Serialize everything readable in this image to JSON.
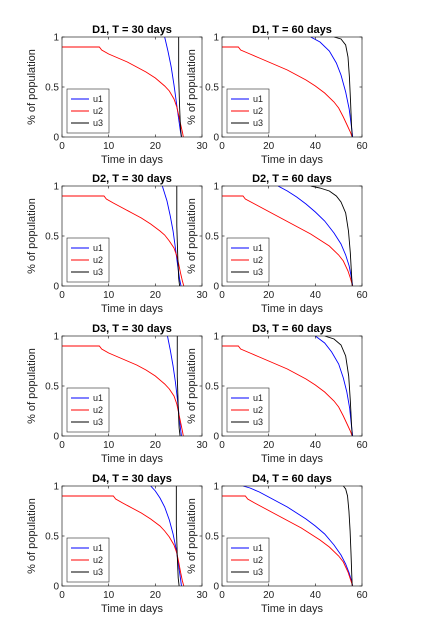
{
  "chart_data": [
    {
      "type": "line",
      "title": "D1, T = 30 days",
      "xlabel": "Time in days",
      "ylabel": "% of population",
      "xlim": [
        0,
        30
      ],
      "ylim": [
        0,
        1
      ],
      "xticks": [
        0,
        10,
        20,
        30
      ],
      "yticks": [
        0,
        0.5,
        1
      ],
      "legend": "bottom-left",
      "series": [
        {
          "name": "u1",
          "color": "#0000ff",
          "x": [
            22,
            22.7,
            23.4,
            24,
            24.5,
            25,
            25.4,
            25.6
          ],
          "y": [
            1,
            0.86,
            0.7,
            0.52,
            0.35,
            0.18,
            0.05,
            0
          ]
        },
        {
          "name": "u2",
          "color": "#ff0000",
          "x": [
            0,
            8,
            8.5,
            10,
            12,
            14,
            16,
            18,
            20,
            22,
            23,
            24,
            24.6,
            25,
            25.4,
            25.8,
            26
          ],
          "y": [
            0.9,
            0.9,
            0.87,
            0.83,
            0.79,
            0.75,
            0.7,
            0.65,
            0.59,
            0.51,
            0.46,
            0.38,
            0.3,
            0.22,
            0.13,
            0.05,
            0
          ]
        },
        {
          "name": "u3",
          "color": "#000000",
          "x": [
            25,
            25,
            25.2,
            25.4,
            25.6
          ],
          "y": [
            1,
            0.6,
            0.3,
            0.08,
            0
          ]
        }
      ]
    },
    {
      "type": "line",
      "title": "D1, T = 60 days",
      "xlabel": "Time in days",
      "ylabel": "% of population",
      "xlim": [
        0,
        60
      ],
      "ylim": [
        0,
        1
      ],
      "xticks": [
        0,
        20,
        40,
        60
      ],
      "yticks": [
        0,
        0.5,
        1
      ],
      "legend": "bottom-left",
      "series": [
        {
          "name": "u1",
          "color": "#0000ff",
          "x": [
            38,
            42,
            46,
            49,
            51,
            53,
            54.5,
            55.5,
            56
          ],
          "y": [
            1,
            0.95,
            0.86,
            0.74,
            0.62,
            0.45,
            0.28,
            0.1,
            0
          ]
        },
        {
          "name": "u2",
          "color": "#ff0000",
          "x": [
            0,
            7,
            8,
            12,
            16,
            20,
            24,
            28,
            32,
            36,
            40,
            44,
            48,
            50,
            52,
            54,
            55,
            55.8
          ],
          "y": [
            0.9,
            0.9,
            0.87,
            0.83,
            0.79,
            0.75,
            0.71,
            0.67,
            0.62,
            0.57,
            0.51,
            0.44,
            0.35,
            0.29,
            0.2,
            0.1,
            0.05,
            0
          ]
        },
        {
          "name": "u3",
          "color": "#000000",
          "x": [
            48,
            51,
            53,
            54,
            54.6,
            55.1,
            55.5,
            55.8
          ],
          "y": [
            1,
            0.98,
            0.92,
            0.8,
            0.6,
            0.35,
            0.12,
            0
          ]
        }
      ]
    },
    {
      "type": "line",
      "title": "D2, T = 30 days",
      "xlabel": "Time in days",
      "ylabel": "% of population",
      "xlim": [
        0,
        30
      ],
      "ylim": [
        0,
        1
      ],
      "xticks": [
        0,
        10,
        20,
        30
      ],
      "yticks": [
        0,
        0.5,
        1
      ],
      "legend": "bottom-left",
      "series": [
        {
          "name": "u1",
          "color": "#0000ff",
          "x": [
            21.5,
            22.5,
            23.2,
            23.8,
            24.3,
            24.8,
            25.2,
            25.5
          ],
          "y": [
            1,
            0.85,
            0.7,
            0.55,
            0.38,
            0.2,
            0.07,
            0
          ]
        },
        {
          "name": "u2",
          "color": "#ff0000",
          "x": [
            0,
            9,
            9.5,
            11,
            13,
            15,
            17,
            19,
            21,
            22,
            23,
            24,
            24.6,
            25,
            25.4,
            25.8,
            26.1
          ],
          "y": [
            0.9,
            0.9,
            0.87,
            0.83,
            0.78,
            0.73,
            0.68,
            0.62,
            0.55,
            0.51,
            0.45,
            0.38,
            0.3,
            0.22,
            0.13,
            0.05,
            0
          ]
        },
        {
          "name": "u3",
          "color": "#000000",
          "x": [
            24.6,
            24.6,
            24.8,
            25,
            25.2
          ],
          "y": [
            1,
            0.6,
            0.3,
            0.08,
            0
          ]
        }
      ]
    },
    {
      "type": "line",
      "title": "D2, T = 60 days",
      "xlabel": "Time in days",
      "ylabel": "% of population",
      "xlim": [
        0,
        60
      ],
      "ylim": [
        0,
        1
      ],
      "xticks": [
        0,
        20,
        40,
        60
      ],
      "yticks": [
        0,
        0.5,
        1
      ],
      "legend": "bottom-left",
      "series": [
        {
          "name": "u1",
          "color": "#0000ff",
          "x": [
            24,
            28,
            32,
            36,
            40,
            44,
            48,
            51,
            53,
            54.5,
            55.5,
            56
          ],
          "y": [
            1,
            0.95,
            0.89,
            0.82,
            0.74,
            0.65,
            0.53,
            0.42,
            0.31,
            0.2,
            0.08,
            0
          ]
        },
        {
          "name": "u2",
          "color": "#ff0000",
          "x": [
            0,
            9,
            10,
            14,
            18,
            22,
            26,
            30,
            34,
            38,
            42,
            46,
            50,
            52,
            54,
            55,
            56
          ],
          "y": [
            0.9,
            0.9,
            0.87,
            0.82,
            0.77,
            0.72,
            0.67,
            0.62,
            0.57,
            0.52,
            0.46,
            0.4,
            0.31,
            0.25,
            0.15,
            0.08,
            0
          ]
        },
        {
          "name": "u3",
          "color": "#000000",
          "x": [
            38,
            42,
            46,
            49,
            51,
            53,
            54.2,
            55,
            55.5,
            55.8
          ],
          "y": [
            1,
            0.98,
            0.95,
            0.9,
            0.84,
            0.73,
            0.55,
            0.33,
            0.12,
            0
          ]
        }
      ]
    },
    {
      "type": "line",
      "title": "D3, T = 30 days",
      "xlabel": "Time in days",
      "ylabel": "% of population",
      "xlim": [
        0,
        30
      ],
      "ylim": [
        0,
        1
      ],
      "xticks": [
        0,
        10,
        20,
        30
      ],
      "yticks": [
        0,
        0.5,
        1
      ],
      "legend": "bottom-left",
      "series": [
        {
          "name": "u1",
          "color": "#0000ff",
          "x": [
            22.6,
            23.2,
            23.8,
            24.3,
            24.7,
            25.1,
            25.4,
            25.6
          ],
          "y": [
            1,
            0.86,
            0.7,
            0.54,
            0.38,
            0.2,
            0.07,
            0
          ]
        },
        {
          "name": "u2",
          "color": "#ff0000",
          "x": [
            0,
            8,
            8.5,
            10,
            12,
            14,
            16,
            18,
            20,
            22,
            23,
            24,
            24.6,
            25,
            25.4,
            25.8,
            26
          ],
          "y": [
            0.9,
            0.9,
            0.87,
            0.83,
            0.79,
            0.75,
            0.71,
            0.66,
            0.6,
            0.52,
            0.47,
            0.4,
            0.32,
            0.23,
            0.14,
            0.05,
            0
          ]
        },
        {
          "name": "u3",
          "color": "#000000",
          "x": [
            24.7,
            24.7,
            24.9,
            25.1,
            25.3
          ],
          "y": [
            1,
            0.6,
            0.3,
            0.08,
            0
          ]
        }
      ]
    },
    {
      "type": "line",
      "title": "D3, T = 60 days",
      "xlabel": "Time in days",
      "ylabel": "% of population",
      "xlim": [
        0,
        60
      ],
      "ylim": [
        0,
        1
      ],
      "xticks": [
        0,
        20,
        40,
        60
      ],
      "yticks": [
        0,
        0.5,
        1
      ],
      "legend": "bottom-left",
      "series": [
        {
          "name": "u1",
          "color": "#0000ff",
          "x": [
            40,
            44,
            47,
            50,
            52,
            53.5,
            54.7,
            55.5,
            56
          ],
          "y": [
            1,
            0.93,
            0.84,
            0.72,
            0.58,
            0.44,
            0.28,
            0.1,
            0
          ]
        },
        {
          "name": "u2",
          "color": "#ff0000",
          "x": [
            0,
            7,
            8,
            12,
            16,
            20,
            24,
            28,
            32,
            36,
            40,
            44,
            48,
            50,
            52,
            54,
            55,
            55.8
          ],
          "y": [
            0.9,
            0.9,
            0.87,
            0.83,
            0.79,
            0.75,
            0.71,
            0.67,
            0.62,
            0.57,
            0.51,
            0.44,
            0.35,
            0.29,
            0.2,
            0.1,
            0.05,
            0
          ]
        },
        {
          "name": "u3",
          "color": "#000000",
          "x": [
            44,
            48,
            51,
            53,
            54.3,
            55,
            55.5,
            55.8
          ],
          "y": [
            1,
            0.97,
            0.91,
            0.8,
            0.6,
            0.35,
            0.12,
            0
          ]
        }
      ]
    },
    {
      "type": "line",
      "title": "D4, T = 30 days",
      "xlabel": "Time in days",
      "ylabel": "% of population",
      "xlim": [
        0,
        30
      ],
      "ylim": [
        0,
        1
      ],
      "xticks": [
        0,
        10,
        20,
        30
      ],
      "yticks": [
        0,
        0.5,
        1
      ],
      "legend": "bottom-left",
      "series": [
        {
          "name": "u1",
          "color": "#0000ff",
          "x": [
            19,
            20,
            21,
            22,
            23,
            23.8,
            24.5,
            25,
            25.4,
            25.6
          ],
          "y": [
            1,
            0.95,
            0.88,
            0.79,
            0.66,
            0.52,
            0.36,
            0.2,
            0.07,
            0
          ]
        },
        {
          "name": "u2",
          "color": "#ff0000",
          "x": [
            0,
            11,
            11.5,
            13,
            15,
            17,
            19,
            21,
            22,
            23,
            24,
            24.6,
            25,
            25.4,
            25.8,
            26.1
          ],
          "y": [
            0.9,
            0.9,
            0.87,
            0.83,
            0.78,
            0.73,
            0.67,
            0.6,
            0.55,
            0.49,
            0.41,
            0.33,
            0.24,
            0.14,
            0.05,
            0
          ]
        },
        {
          "name": "u3",
          "color": "#000000",
          "x": [
            24.5,
            24.5,
            24.7,
            24.9,
            25.1
          ],
          "y": [
            1,
            0.6,
            0.3,
            0.08,
            0
          ]
        }
      ]
    },
    {
      "type": "line",
      "title": "D4, T = 60 days",
      "xlabel": "Time in days",
      "ylabel": "% of population",
      "xlim": [
        0,
        60
      ],
      "ylim": [
        0,
        1
      ],
      "xticks": [
        0,
        20,
        40,
        60
      ],
      "yticks": [
        0,
        0.5,
        1
      ],
      "legend": "bottom-left",
      "series": [
        {
          "name": "u1",
          "color": "#0000ff",
          "x": [
            9,
            12,
            16,
            20,
            24,
            28,
            32,
            36,
            40,
            44,
            48,
            51,
            53,
            54.5,
            55.5,
            56
          ],
          "y": [
            1,
            0.98,
            0.94,
            0.89,
            0.84,
            0.79,
            0.73,
            0.67,
            0.6,
            0.52,
            0.41,
            0.31,
            0.22,
            0.13,
            0.05,
            0
          ]
        },
        {
          "name": "u2",
          "color": "#ff0000",
          "x": [
            0,
            10,
            11,
            14,
            18,
            22,
            26,
            30,
            34,
            38,
            42,
            46,
            50,
            52,
            54,
            55,
            56
          ],
          "y": [
            0.9,
            0.9,
            0.87,
            0.83,
            0.78,
            0.73,
            0.68,
            0.63,
            0.58,
            0.52,
            0.46,
            0.39,
            0.3,
            0.24,
            0.14,
            0.07,
            0
          ]
        },
        {
          "name": "u3",
          "color": "#000000",
          "x": [
            52,
            53,
            53.8,
            54.4,
            54.9,
            55.3,
            55.6,
            55.8
          ],
          "y": [
            1,
            0.97,
            0.9,
            0.75,
            0.55,
            0.32,
            0.12,
            0
          ]
        }
      ]
    }
  ]
}
